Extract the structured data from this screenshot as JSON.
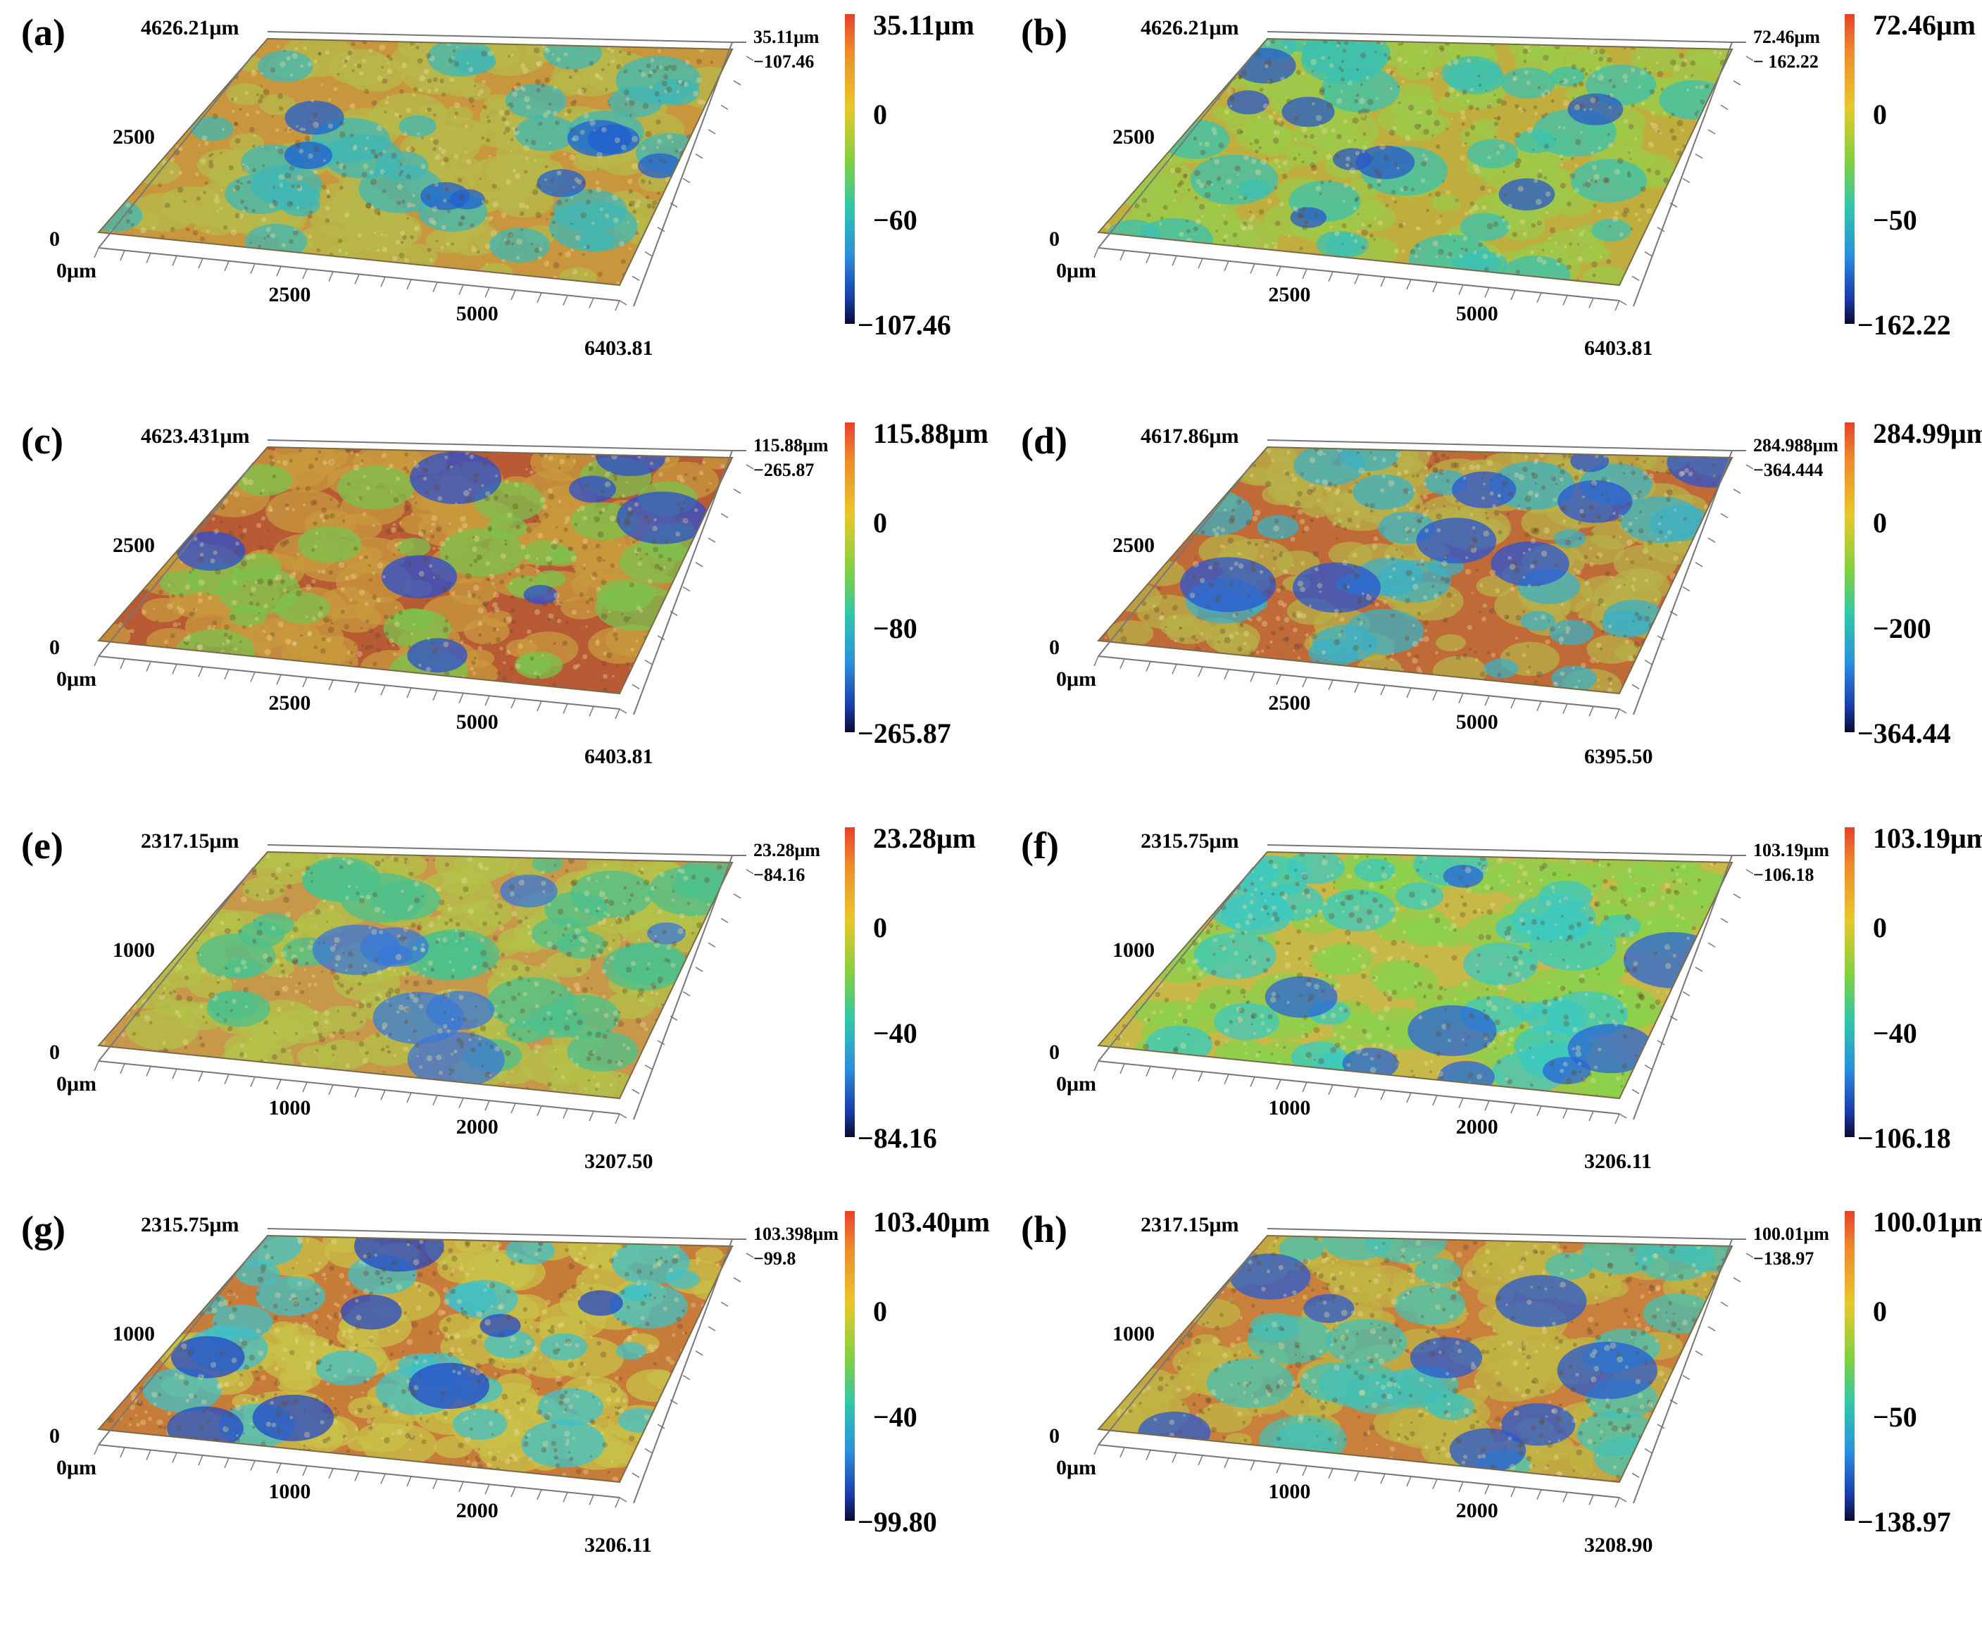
{
  "panels": [
    {
      "letter": "(a)",
      "y_top_label": "4626.21μm",
      "y_mid_label": "2500",
      "z0_label": "0",
      "x0_label": "0μm",
      "x_mid1_label": "2500",
      "x_mid2_label": "5000",
      "x_end_label": "6403.81",
      "z_max_label": "35.11μm",
      "z_min_label": "−107.46",
      "colorbar": {
        "max": "35.11μm",
        "t1": "0",
        "t2": "−60",
        "min": "−107.46"
      },
      "colors": {
        "base": "#c8963c",
        "mid": "#b7b84a",
        "low": "#3fb7b6",
        "deep": "#2060d0"
      }
    },
    {
      "letter": "(b)",
      "y_top_label": "4626.21μm",
      "y_mid_label": "2500",
      "z0_label": "0",
      "x0_label": "0μm",
      "x_mid1_label": "2500",
      "x_mid2_label": "5000",
      "x_end_label": "6403.81",
      "z_max_label": "72.46μm",
      "z_min_label": "− 162.22",
      "colorbar": {
        "max": "72.46μm",
        "t1": "0",
        "t2": "−50",
        "min": "−162.22"
      },
      "colors": {
        "base": "#bfae3e",
        "mid": "#9ec84a",
        "low": "#3cc0b0",
        "deep": "#2a58c8"
      }
    },
    {
      "letter": "(c)",
      "y_top_label": "4623.431μm",
      "y_mid_label": "2500",
      "z0_label": "0",
      "x0_label": "0μm",
      "x_mid1_label": "2500",
      "x_mid2_label": "5000",
      "x_end_label": "6403.81",
      "z_max_label": "115.88μm",
      "z_min_label": "−265.87",
      "colorbar": {
        "max": "115.88μm",
        "t1": "0",
        "t2": "−80",
        "min": "−265.87"
      },
      "colors": {
        "base": "#b85a34",
        "mid": "#c89a3c",
        "low": "#7cc24e",
        "deep": "#2a4fd0"
      }
    },
    {
      "letter": "(d)",
      "y_top_label": "4617.86μm",
      "y_mid_label": "2500",
      "z0_label": "0",
      "x0_label": "0μm",
      "x_mid1_label": "2500",
      "x_mid2_label": "5000",
      "x_end_label": "6395.50",
      "z_max_label": "284.988μm",
      "z_min_label": "−364.444",
      "colorbar": {
        "max": "284.99μm",
        "t1": "0",
        "t2": "−200",
        "min": "−364.44"
      },
      "colors": {
        "base": "#c06a38",
        "mid": "#b8b048",
        "low": "#3cb0c4",
        "deep": "#2a56d0"
      }
    },
    {
      "letter": "(e)",
      "y_top_label": "2317.15μm",
      "y_mid_label": "1000",
      "z0_label": "0",
      "x0_label": "0μm",
      "x_mid1_label": "1000",
      "x_mid2_label": "2000",
      "x_end_label": "3207.50",
      "z_max_label": "23.28μm",
      "z_min_label": "−84.16",
      "colorbar": {
        "max": "23.28μm",
        "t1": "0",
        "t2": "−40",
        "min": "−84.16"
      },
      "colors": {
        "base": "#c8984a",
        "mid": "#b4c04a",
        "low": "#4cc08c",
        "deep": "#3a78d8"
      }
    },
    {
      "letter": "(f)",
      "y_top_label": "2315.75μm",
      "y_mid_label": "1000",
      "z0_label": "0",
      "x0_label": "0μm",
      "x_mid1_label": "1000",
      "x_mid2_label": "2000",
      "x_end_label": "3206.11",
      "z_max_label": "103.19μm",
      "z_min_label": "−106.18",
      "colorbar": {
        "max": "103.19μm",
        "t1": "0",
        "t2": "−40",
        "min": "−106.18"
      },
      "colors": {
        "base": "#c8b848",
        "mid": "#8cd04c",
        "low": "#3cc8c0",
        "deep": "#2a64d8"
      }
    },
    {
      "letter": "(g)",
      "y_top_label": "2315.75μm",
      "y_mid_label": "1000",
      "z0_label": "0",
      "x0_label": "0μm",
      "x_mid1_label": "1000",
      "x_mid2_label": "2000",
      "x_end_label": "3206.11",
      "z_max_label": "103.398μm",
      "z_min_label": "−99.8",
      "colorbar": {
        "max": "103.40μm",
        "t1": "0",
        "t2": "−40",
        "min": "−99.80"
      },
      "colors": {
        "base": "#c87c3a",
        "mid": "#c8c048",
        "low": "#40c0c8",
        "deep": "#2448c8"
      }
    },
    {
      "letter": "(h)",
      "y_top_label": "2317.15μm",
      "y_mid_label": "1000",
      "z0_label": "0",
      "x0_label": "0μm",
      "x_mid1_label": "1000",
      "x_mid2_label": "2000",
      "x_end_label": "3208.90",
      "z_max_label": "100.01μm",
      "z_min_label": "−138.97",
      "colorbar": {
        "max": "100.01μm",
        "t1": "0",
        "t2": "−50",
        "min": "−138.97"
      },
      "colors": {
        "base": "#c8803c",
        "mid": "#c0b444",
        "low": "#46c0b4",
        "deep": "#2a5ad0"
      }
    }
  ]
}
